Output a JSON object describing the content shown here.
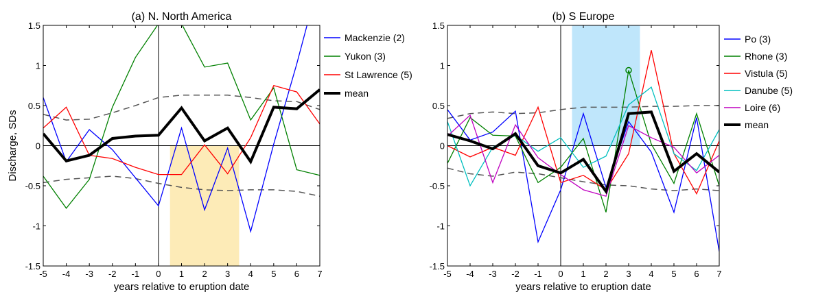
{
  "chart_data": [
    {
      "type": "line",
      "title": "(a) N. North America",
      "xlabel": "years relative to eruption date",
      "ylabel": "Discharge, SDs",
      "xlim": [
        -5,
        7
      ],
      "ylim": [
        -1.5,
        1.5
      ],
      "xticks": [
        "-5",
        "-4",
        "-3",
        "-2",
        "-1",
        "0",
        "1",
        "2",
        "3",
        "4",
        "5",
        "6",
        "7"
      ],
      "yticks": [
        "-1.5",
        "-1",
        "-0.5",
        "0",
        "0.5",
        "1",
        "1.5"
      ],
      "legend_position": "right",
      "highlight": {
        "x": [
          0.5,
          3.5
        ],
        "y": [
          -1.5,
          0
        ],
        "color": "#fdebb7"
      },
      "x": [
        -5,
        -4,
        -3,
        -2,
        -1,
        0,
        1,
        2,
        3,
        4,
        5,
        6,
        7
      ],
      "series": [
        {
          "name": "Mackenzie (2)",
          "color": "#0000ff",
          "values": [
            0.6,
            -0.2,
            0.2,
            -0.05,
            -0.4,
            -0.75,
            0.22,
            -0.8,
            -0.03,
            -1.07,
            0.02,
            1.02,
            2.1
          ]
        },
        {
          "name": "Yukon (3)",
          "color": "#008000",
          "values": [
            -0.38,
            -0.78,
            -0.42,
            0.48,
            1.1,
            1.52,
            1.52,
            0.98,
            1.03,
            0.32,
            0.72,
            -0.3,
            -0.37
          ]
        },
        {
          "name": "St Lawrence (5)",
          "color": "#ff0000",
          "values": [
            0.22,
            0.48,
            -0.12,
            -0.16,
            -0.27,
            -0.36,
            -0.36,
            0.01,
            -0.35,
            0.1,
            0.75,
            0.67,
            0.27
          ]
        },
        {
          "name": "mean",
          "color": "#000000",
          "values": [
            0.15,
            -0.19,
            -0.12,
            0.09,
            0.12,
            0.13,
            0.47,
            0.06,
            0.22,
            -0.2,
            0.48,
            0.46,
            0.7
          ]
        }
      ],
      "bounds": {
        "color": "#555555",
        "upper": [
          0.39,
          0.32,
          0.33,
          0.41,
          0.5,
          0.6,
          0.63,
          0.63,
          0.63,
          0.6,
          0.56,
          0.55,
          0.45
        ],
        "lower": [
          -0.46,
          -0.42,
          -0.4,
          -0.38,
          -0.41,
          -0.47,
          -0.52,
          -0.55,
          -0.56,
          -0.55,
          -0.55,
          -0.57,
          -0.63
        ]
      }
    },
    {
      "type": "line",
      "title": "(b) S Europe",
      "xlabel": "years relative to eruption date",
      "ylabel": "",
      "xlim": [
        -5,
        7
      ],
      "ylim": [
        -1.5,
        1.5
      ],
      "xticks": [
        "-5",
        "-4",
        "-3",
        "-2",
        "-1",
        "0",
        "1",
        "2",
        "3",
        "4",
        "5",
        "6",
        "7"
      ],
      "yticks": [
        "-1.5",
        "-1",
        "-0.5",
        "0",
        "0.5",
        "1",
        "1.5"
      ],
      "legend_position": "right",
      "highlight": {
        "x": [
          0.5,
          3.5
        ],
        "y": [
          0,
          1.5
        ],
        "color": "#bfe6fb"
      },
      "marker": {
        "x": 3,
        "y": 0.94,
        "color": "#008000"
      },
      "x": [
        -5,
        -4,
        -3,
        -2,
        -1,
        0,
        1,
        2,
        3,
        4,
        5,
        6,
        7
      ],
      "series": [
        {
          "name": "Po (3)",
          "color": "#0000ff",
          "values": [
            0.45,
            0.07,
            0.17,
            0.43,
            -1.2,
            -0.55,
            0.4,
            -0.52,
            0.3,
            -0.08,
            -0.83,
            0.35,
            -1.32
          ]
        },
        {
          "name": "Rhone (3)",
          "color": "#008000",
          "values": [
            -0.22,
            0.35,
            0.13,
            0.12,
            -0.46,
            -0.27,
            0.09,
            -0.83,
            0.94,
            0.02,
            -0.47,
            0.4,
            -0.5
          ]
        },
        {
          "name": "Vistula (5)",
          "color": "#ff0000",
          "values": [
            0.0,
            -0.14,
            -0.02,
            -0.12,
            0.48,
            -0.46,
            -0.37,
            -0.55,
            -0.1,
            1.19,
            -0.1,
            -0.6,
            0.06
          ]
        },
        {
          "name": "Danube (5)",
          "color": "#00bfbf",
          "values": [
            0.3,
            -0.5,
            -0.02,
            0.13,
            -0.07,
            0.1,
            -0.27,
            -0.13,
            0.51,
            0.73,
            -0.1,
            -0.31,
            0.2
          ]
        },
        {
          "name": "Loire (6)",
          "color": "#bf00bf",
          "values": [
            0.12,
            0.38,
            -0.46,
            0.26,
            -0.15,
            -0.36,
            -0.55,
            -0.63,
            0.25,
            0.1,
            -0.02,
            -0.34,
            -0.12
          ]
        },
        {
          "name": "mean",
          "color": "#000000",
          "values": [
            0.14,
            0.06,
            -0.04,
            0.15,
            -0.25,
            -0.34,
            -0.17,
            -0.57,
            0.4,
            0.42,
            -0.32,
            -0.1,
            -0.33
          ]
        }
      ],
      "bounds": {
        "color": "#555555",
        "upper": [
          0.34,
          0.4,
          0.42,
          0.4,
          0.41,
          0.45,
          0.48,
          0.48,
          0.48,
          0.49,
          0.49,
          0.5,
          0.5
        ],
        "lower": [
          -0.28,
          -0.35,
          -0.38,
          -0.33,
          -0.35,
          -0.4,
          -0.45,
          -0.49,
          -0.5,
          -0.54,
          -0.56,
          -0.54,
          -0.56
        ]
      }
    }
  ]
}
